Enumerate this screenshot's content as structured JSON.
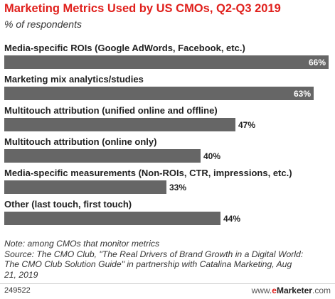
{
  "chart_data": {
    "type": "bar",
    "orientation": "horizontal",
    "title": "Marketing Metrics Used by US CMOs, Q2-Q3 2019",
    "subtitle": "% of respondents",
    "categories": [
      "Media-specific ROIs (Google AdWords, Facebook, etc.)",
      "Marketing mix analytics/studies",
      "Multitouch attribution (unified online and offline)",
      "Multitouch attribution (online only)",
      "Media-specific measurements (Non-ROIs, CTR, impressions, etc.)",
      "Other (last touch, first touch)"
    ],
    "values": [
      66,
      63,
      47,
      40,
      33,
      44
    ],
    "value_labels": [
      "66%",
      "63%",
      "47%",
      "40%",
      "33%",
      "44%"
    ],
    "xlim": [
      0,
      66
    ],
    "grid": false,
    "legend": "none",
    "bar_color": "#666666"
  },
  "notes": {
    "line1": "Note: among CMOs that monitor metrics",
    "line2": "Source: The CMO Club, \"The Real Drivers of Brand Growth in a Digital World:",
    "line3": "The CMO Club Solution Guide\" in partnership with Catalina Marketing, Aug",
    "line4": "21, 2019"
  },
  "footer": {
    "id": "249522",
    "brand_prefix": "www.",
    "brand_e": "e",
    "brand_name": "Marketer",
    "brand_suffix": ".com"
  }
}
